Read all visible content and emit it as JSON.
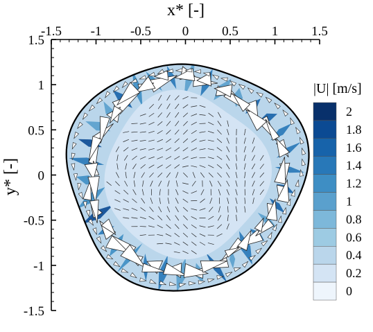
{
  "chart_data": {
    "type": "heatmap",
    "title": "",
    "xlabel": "x* [-]",
    "ylabel": "y* [-]",
    "xlim": [
      -1.5,
      1.5
    ],
    "ylim": [
      -1.5,
      1.5
    ],
    "x_ticks": [
      "-1.5",
      "-1",
      "-0.5",
      "0",
      "0.5",
      "1",
      "1.5"
    ],
    "y_ticks": [
      "1.5",
      "1",
      "0.5",
      "0",
      "-0.5",
      "-1",
      "-1.5"
    ],
    "x_axis_position": "top",
    "colorbar": {
      "title": "|U| [m/s]",
      "levels": [
        "2",
        "1.8",
        "1.6",
        "1.4",
        "1.2",
        "1",
        "0.8",
        "0.6",
        "0.4",
        "0.2",
        "0"
      ],
      "colors": [
        "#08306b",
        "#0b4a93",
        "#1763aa",
        "#2878b8",
        "#3e8ec4",
        "#5aa0cd",
        "#7db8da",
        "#9dcbe3",
        "#bad6eb",
        "#d4e4f4",
        "#eef5fc"
      ]
    },
    "field": {
      "outer_boundary_radius": 1.29,
      "inner_core_radius": 0.9,
      "core_speed_ms": 0.2,
      "annulus_speed_ms": 0.6,
      "jet_peak_speed_ms": 2.0
    },
    "grid": false
  }
}
